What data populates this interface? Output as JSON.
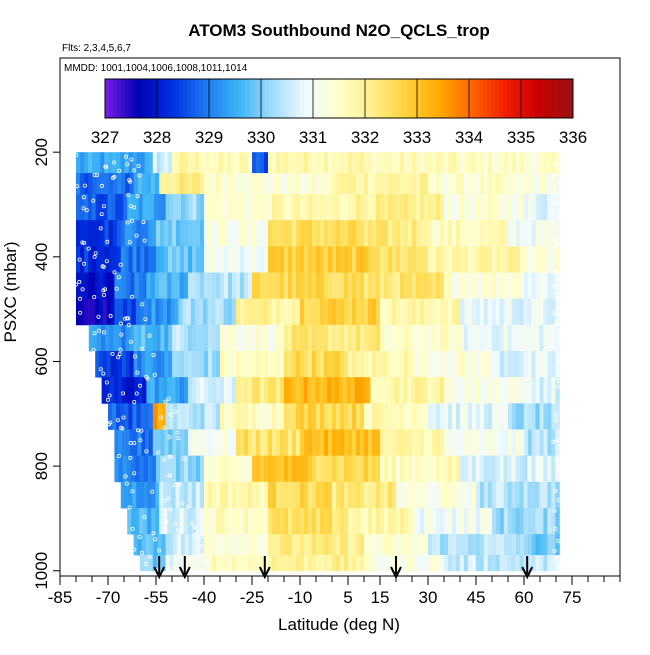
{
  "chart_data": {
    "type": "heatmap",
    "title": "ATOM3 Southbound N2O_QCLS_trop",
    "flights_note": "Flts: 2,3,4,5,6,7",
    "dates_note": "MMDD: 1001,1004,1006,1008,1011,1014",
    "xlabel": "Latitude (deg N)",
    "ylabel": "PSXC (mbar)",
    "xlim": [
      -85,
      90
    ],
    "ylim": [
      1010,
      20
    ],
    "x_ticks": [
      -85,
      -70,
      -55,
      -40,
      -25,
      -10,
      5,
      15,
      30,
      45,
      60,
      75
    ],
    "y_ticks": [
      200,
      400,
      600,
      800,
      1000
    ],
    "colorbar": {
      "min": 327,
      "max": 336,
      "ticks": [
        327,
        328,
        329,
        330,
        331,
        332,
        333,
        334,
        335,
        336
      ],
      "colors": [
        "#7a1ee8",
        "#0000b4",
        "#0030e0",
        "#1e78f0",
        "#3cb4f5",
        "#a0dcfa",
        "#f0faff",
        "#ffffc8",
        "#fff08c",
        "#ffd23c",
        "#ffaa00",
        "#ff6400",
        "#f01e00",
        "#c80000",
        "#961414"
      ]
    },
    "arrow_latitudes": [
      -54,
      -46,
      -21,
      20,
      61
    ],
    "data_extent": {
      "lat_min": -80,
      "lat_max": 71,
      "p_min": 200,
      "p_max": 1000
    },
    "bands": [
      {
        "p_top": 200,
        "p_bot": 240,
        "segments": [
          [
            -80,
            -56,
            329.4
          ],
          [
            -56,
            -50,
            330.6
          ],
          [
            -50,
            -38,
            331.8
          ],
          [
            -38,
            -25,
            331.6
          ],
          [
            -25,
            -20,
            328.6
          ],
          [
            -20,
            10,
            331.8
          ],
          [
            10,
            40,
            331.6
          ],
          [
            40,
            60,
            331.5
          ],
          [
            60,
            71,
            331.4
          ]
        ]
      },
      {
        "p_top": 240,
        "p_bot": 280,
        "segments": [
          [
            -80,
            -62,
            328.8
          ],
          [
            -62,
            -54,
            329.6
          ],
          [
            -54,
            -40,
            332.1
          ],
          [
            -40,
            -25,
            331.5
          ],
          [
            -25,
            0,
            331.3
          ],
          [
            0,
            30,
            331.9
          ],
          [
            30,
            55,
            331.4
          ],
          [
            55,
            71,
            331.2
          ]
        ]
      },
      {
        "p_top": 280,
        "p_bot": 330,
        "segments": [
          [
            -80,
            -64,
            328.6
          ],
          [
            -64,
            -52,
            329.4
          ],
          [
            -52,
            -40,
            330.2
          ],
          [
            -40,
            -20,
            331.4
          ],
          [
            -20,
            5,
            331.7
          ],
          [
            5,
            35,
            332.0
          ],
          [
            35,
            60,
            331.3
          ],
          [
            60,
            71,
            330.8
          ]
        ]
      },
      {
        "p_top": 330,
        "p_bot": 380,
        "segments": [
          [
            -80,
            -66,
            328.4
          ],
          [
            -66,
            -55,
            329.2
          ],
          [
            -55,
            -40,
            330.0
          ],
          [
            -40,
            -20,
            331.2
          ],
          [
            -20,
            10,
            332.5
          ],
          [
            10,
            30,
            332.2
          ],
          [
            30,
            55,
            331.6
          ],
          [
            55,
            71,
            331.0
          ]
        ]
      },
      {
        "p_top": 380,
        "p_bot": 430,
        "segments": [
          [
            -80,
            -66,
            328.3
          ],
          [
            -66,
            -55,
            329.0
          ],
          [
            -55,
            -40,
            329.8
          ],
          [
            -40,
            -20,
            331.0
          ],
          [
            -20,
            15,
            332.8
          ],
          [
            15,
            30,
            332.4
          ],
          [
            30,
            60,
            331.8
          ],
          [
            60,
            71,
            331.2
          ]
        ]
      },
      {
        "p_top": 430,
        "p_bot": 480,
        "segments": [
          [
            -80,
            -68,
            327.8
          ],
          [
            -68,
            -58,
            328.9
          ],
          [
            -58,
            -45,
            329.6
          ],
          [
            -45,
            -25,
            330.4
          ],
          [
            -25,
            10,
            332.6
          ],
          [
            10,
            35,
            332.3
          ],
          [
            35,
            60,
            331.4
          ],
          [
            60,
            71,
            330.9
          ]
        ]
      },
      {
        "p_top": 480,
        "p_bot": 530,
        "segments": [
          [
            -80,
            -68,
            327.6
          ],
          [
            -68,
            -60,
            328.6
          ],
          [
            -60,
            -48,
            329.3
          ],
          [
            -48,
            -30,
            330.3
          ],
          [
            -30,
            -10,
            332.0
          ],
          [
            -10,
            15,
            332.8
          ],
          [
            15,
            40,
            331.8
          ],
          [
            40,
            71,
            330.8
          ]
        ]
      },
      {
        "p_top": 530,
        "p_bot": 580,
        "segments": [
          [
            -76,
            -62,
            329.2
          ],
          [
            -62,
            -50,
            329.7
          ],
          [
            -50,
            -35,
            330.4
          ],
          [
            -35,
            -15,
            331.3
          ],
          [
            -15,
            15,
            332.2
          ],
          [
            15,
            40,
            331.4
          ],
          [
            40,
            71,
            330.9
          ]
        ]
      },
      {
        "p_top": 580,
        "p_bot": 630,
        "segments": [
          [
            -74,
            -62,
            328.4
          ],
          [
            -62,
            -50,
            329.2
          ],
          [
            -50,
            -35,
            330.2
          ],
          [
            -35,
            -15,
            331.5
          ],
          [
            -15,
            5,
            332.6
          ],
          [
            5,
            25,
            331.8
          ],
          [
            25,
            50,
            331.3
          ],
          [
            50,
            71,
            330.7
          ]
        ]
      },
      {
        "p_top": 630,
        "p_bot": 680,
        "segments": [
          [
            -72,
            -58,
            328.1
          ],
          [
            -58,
            -45,
            329.4
          ],
          [
            -45,
            -30,
            330.6
          ],
          [
            -30,
            -15,
            332.2
          ],
          [
            -15,
            12,
            333.2
          ],
          [
            12,
            35,
            331.9
          ],
          [
            35,
            60,
            331.2
          ],
          [
            60,
            71,
            330.8
          ]
        ]
      },
      {
        "p_top": 680,
        "p_bot": 730,
        "segments": [
          [
            -70,
            -56,
            328.7
          ],
          [
            -56,
            -52,
            333.4
          ],
          [
            -52,
            -35,
            330.4
          ],
          [
            -35,
            -15,
            331.6
          ],
          [
            -15,
            10,
            332.7
          ],
          [
            10,
            30,
            331.7
          ],
          [
            30,
            55,
            330.8
          ],
          [
            55,
            71,
            330.2
          ]
        ]
      },
      {
        "p_top": 730,
        "p_bot": 780,
        "segments": [
          [
            -68,
            -56,
            328.9
          ],
          [
            -56,
            -45,
            330.0
          ],
          [
            -45,
            -30,
            331.1
          ],
          [
            -30,
            -10,
            332.4
          ],
          [
            -10,
            15,
            333.1
          ],
          [
            15,
            35,
            331.8
          ],
          [
            35,
            60,
            331.0
          ],
          [
            60,
            71,
            330.4
          ]
        ]
      },
      {
        "p_top": 780,
        "p_bot": 830,
        "segments": [
          [
            -68,
            -55,
            329.1
          ],
          [
            -55,
            -40,
            330.1
          ],
          [
            -40,
            -25,
            331.3
          ],
          [
            -25,
            -5,
            333.0
          ],
          [
            -5,
            15,
            332.6
          ],
          [
            15,
            40,
            331.6
          ],
          [
            40,
            71,
            330.7
          ]
        ]
      },
      {
        "p_top": 830,
        "p_bot": 880,
        "segments": [
          [
            -66,
            -54,
            329.4
          ],
          [
            -54,
            -40,
            330.5
          ],
          [
            -40,
            -20,
            331.8
          ],
          [
            -20,
            0,
            332.6
          ],
          [
            0,
            20,
            332.2
          ],
          [
            20,
            45,
            331.2
          ],
          [
            45,
            71,
            330.4
          ]
        ]
      },
      {
        "p_top": 880,
        "p_bot": 930,
        "segments": [
          [
            -64,
            -54,
            329.6
          ],
          [
            -54,
            -40,
            330.7
          ],
          [
            -40,
            -20,
            331.6
          ],
          [
            -20,
            5,
            332.4
          ],
          [
            5,
            25,
            331.8
          ],
          [
            25,
            50,
            331.0
          ],
          [
            50,
            71,
            330.2
          ]
        ]
      },
      {
        "p_top": 930,
        "p_bot": 970,
        "segments": [
          [
            -62,
            -52,
            329.8
          ],
          [
            -52,
            -40,
            330.6
          ],
          [
            -40,
            -20,
            331.4
          ],
          [
            -20,
            10,
            332.1
          ],
          [
            10,
            30,
            331.3
          ],
          [
            30,
            60,
            330.4
          ],
          [
            60,
            71,
            329.9
          ]
        ]
      },
      {
        "p_top": 970,
        "p_bot": 1000,
        "segments": [
          [
            -60,
            -52,
            330.0
          ],
          [
            -52,
            -40,
            330.9
          ],
          [
            -40,
            -20,
            331.6
          ],
          [
            -20,
            10,
            332.0
          ],
          [
            10,
            35,
            331.2
          ],
          [
            35,
            71,
            330.5
          ]
        ]
      }
    ]
  }
}
